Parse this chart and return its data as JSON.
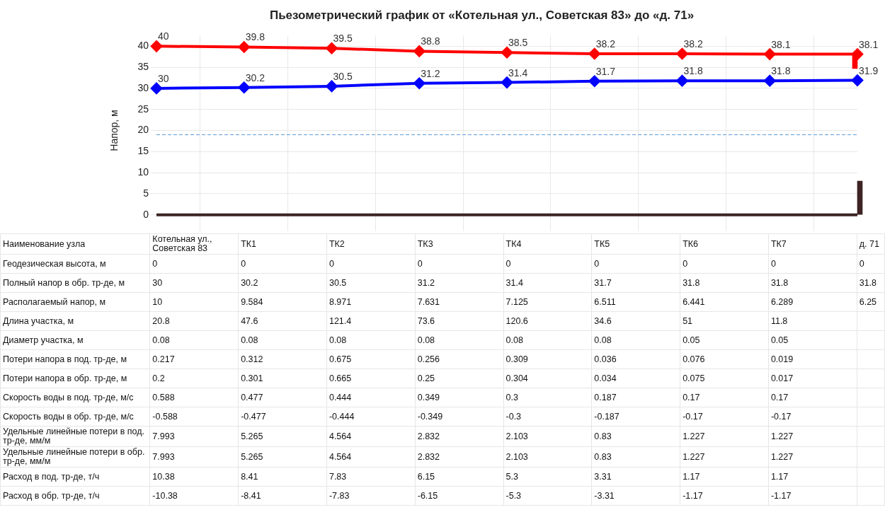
{
  "chart_data": [
    {
      "type": "line",
      "title": "Пьезометрический график от «Котельная ул., Советская 83» до «д. 71»",
      "ylabel": "Напор, м",
      "categories": [
        null,
        null,
        null,
        null,
        null,
        null,
        null,
        null,
        null
      ],
      "series": [
        {
          "color": "#ff0000",
          "values": [
            40,
            39.8,
            39.5,
            38.8,
            38.5,
            38.2,
            38.2,
            38.1,
            38.1
          ],
          "value_labels": [
            "40",
            "39.8",
            "39.5",
            "38.8",
            "38.5",
            "38.2",
            "38.2",
            "38.1",
            "38.1"
          ]
        },
        {
          "color": "#0000ff",
          "values": [
            30,
            30.2,
            30.5,
            31.2,
            31.4,
            31.7,
            31.8,
            31.8,
            31.9
          ],
          "value_labels": [
            "30",
            "30.2",
            "30.5",
            "31.2",
            "31.4",
            "31.7",
            "31.8",
            "31.8",
            "31.9"
          ]
        },
        {
          "color": "#3d2323",
          "values": [
            0,
            0,
            0,
            0,
            0,
            0,
            0,
            0,
            0
          ],
          "marker": "none"
        },
        {
          "type": "bar",
          "color": "#ff0000",
          "values": [
            null,
            null,
            null,
            null,
            null,
            null,
            null,
            null,
            3.4
          ],
          "base": [
            null,
            null,
            null,
            null,
            null,
            null,
            null,
            null,
            34.7
          ]
        },
        {
          "type": "bar",
          "color": "#3d2323",
          "values": [
            null,
            null,
            null,
            null,
            null,
            null,
            null,
            null,
            8
          ]
        }
      ],
      "ylim": [
        -2.5,
        42.5
      ],
      "yticks": [
        0,
        5,
        10,
        15,
        20,
        25,
        30,
        35,
        40
      ],
      "ref_lines": [
        {
          "axis": "y",
          "value": 19,
          "color": "#5b9bd5",
          "line_style": "dashed"
        }
      ],
      "grid": true,
      "legend": false,
      "marker": "diamond",
      "tick_labels": "y"
    },
    {
      "type": "other",
      "xlabel": "Наименование узла",
      "categories": [
        "Котельная ул., Советская 83",
        "ТК1",
        "ТК2",
        "ТК3",
        "ТК4",
        "ТК5",
        "ТК6",
        "ТК7",
        "д. 71"
      ],
      "series": [
        {
          "name": "Геодезическая высота, м",
          "values": [
            0,
            0,
            0,
            0,
            0,
            0,
            0,
            0,
            0
          ]
        },
        {
          "name": "Полный напор в обр. тр-де, м",
          "values": [
            30,
            30.2,
            30.5,
            31.2,
            31.4,
            31.7,
            31.8,
            31.8,
            31.8
          ]
        },
        {
          "name": "Располагаемый напор, м",
          "values": [
            10,
            9.584,
            8.971,
            7.631,
            7.125,
            6.511,
            6.441,
            6.289,
            6.25
          ]
        },
        {
          "name": "Длина участка, м",
          "values": [
            20.8,
            47.6,
            121.4,
            73.6,
            120.6,
            34.6,
            51,
            11.8,
            null
          ]
        },
        {
          "name": "Диаметр участка, м",
          "values": [
            0.08,
            0.08,
            0.08,
            0.08,
            0.08,
            0.08,
            0.05,
            0.05,
            null
          ]
        },
        {
          "name": "Потери напора в под. тр-де, м",
          "values": [
            0.217,
            0.312,
            0.675,
            0.256,
            0.309,
            0.036,
            0.076,
            0.019,
            null
          ]
        },
        {
          "name": "Потери напора в обр. тр-де, м",
          "values": [
            0.2,
            0.301,
            0.665,
            0.25,
            0.304,
            0.034,
            0.075,
            0.017,
            null
          ]
        },
        {
          "name": "Скорость воды в под. тр-де, м/с",
          "values": [
            0.588,
            0.477,
            0.444,
            0.349,
            0.3,
            0.187,
            0.17,
            0.17,
            null
          ]
        },
        {
          "name": "Скорость воды в обр. тр-де, м/с",
          "values": [
            -0.588,
            -0.477,
            -0.444,
            -0.349,
            -0.3,
            -0.187,
            -0.17,
            -0.17,
            null
          ]
        },
        {
          "name": "Удельные линейные потери в под. тр-де, мм/м",
          "values": [
            7.993,
            5.265,
            4.564,
            2.832,
            2.103,
            0.83,
            1.227,
            1.227,
            null
          ]
        },
        {
          "name": "Удельные линейные потери в обр. тр-де, мм/м",
          "values": [
            7.993,
            5.265,
            4.564,
            2.832,
            2.103,
            0.83,
            1.227,
            1.227,
            null
          ]
        },
        {
          "name": "Расход в под. тр-де, т/ч",
          "values": [
            10.38,
            8.41,
            7.83,
            6.15,
            5.3,
            3.31,
            1.17,
            1.17,
            null
          ]
        },
        {
          "name": "Расход в обр. тр-де, т/ч",
          "values": [
            -10.38,
            -8.41,
            -7.83,
            -6.15,
            -5.3,
            -3.31,
            -1.17,
            -1.17,
            null
          ]
        }
      ],
      "data_labels": true
    }
  ]
}
